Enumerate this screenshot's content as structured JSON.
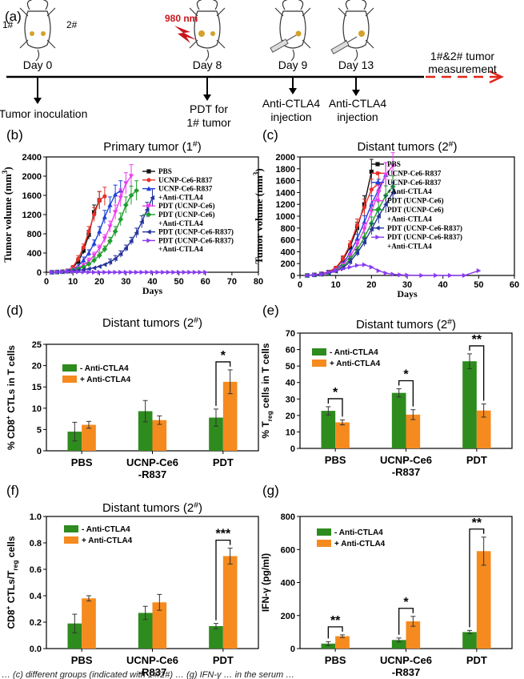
{
  "timeline": {
    "panel": "(a)",
    "laser": "980 nm",
    "mouse_labels": [
      "1#",
      "2#"
    ],
    "days": [
      {
        "day": "Day 0",
        "event_lines": [
          "Tumor inoculation"
        ]
      },
      {
        "day": "Day 8",
        "event_lines": [
          "PDT for",
          "1# tumor"
        ]
      },
      {
        "day": "Day 9",
        "event_lines": [
          "Anti-CTLA4",
          "injection"
        ]
      },
      {
        "day": "Day 13",
        "event_lines": [
          "Anti-CTLA4",
          "injection"
        ]
      }
    ],
    "measurement_lines": [
      "1#&2# tumor",
      "measurement"
    ]
  },
  "colors": {
    "PBS": "#111111",
    "UCNP-Ce6-R837": "#e8312a",
    "UCNP-Ce6-R837 +Anti-CTLA4": "#1f3fd8",
    "PDT (UCNP-Ce6)": "#ee3cf0",
    "PDT (UCNP-Ce6) +Anti-CTLA4": "#1e9e2e",
    "PDT (UCNP-Ce6-R837)": "#27349c",
    "PDT (UCNP-Ce6-R837) +Anti-CTLA4": "#8a3bf0",
    "minus": "#2e8b1e",
    "plus": "#f58a1f",
    "timeline_arrow": "#e0261b"
  },
  "footer_text": "… (c) different groups (indicated with 1#/2#) … (g) IFN-γ … in the serum …",
  "chart_data": [
    {
      "panel": "(b)",
      "type": "line",
      "title": "Primary tumor (1#)",
      "xlabel": "Days",
      "ylabel": "Tumor volume (mm3)",
      "xlim": [
        0,
        80
      ],
      "ylim": [
        0,
        2400
      ],
      "xticks": [
        0,
        10,
        20,
        30,
        40,
        50,
        60,
        70,
        80
      ],
      "yticks": [
        0,
        400,
        800,
        1200,
        1600,
        2000,
        2400
      ],
      "legend_position": "top-right",
      "series": [
        {
          "name": "PBS",
          "lines": [
            "PBS"
          ],
          "x": [
            2,
            4,
            6,
            8,
            10,
            12,
            14,
            16,
            18,
            20
          ],
          "y": [
            0,
            5,
            10,
            30,
            100,
            220,
            450,
            780,
            1250,
            1500
          ]
        },
        {
          "name": "UCNP-Ce6-R837",
          "lines": [
            "UCNP-Ce6-R837"
          ],
          "x": [
            2,
            4,
            6,
            8,
            10,
            12,
            14,
            16,
            18,
            20,
            22
          ],
          "y": [
            0,
            5,
            12,
            30,
            110,
            280,
            520,
            850,
            1200,
            1500,
            1580
          ]
        },
        {
          "name": "UCNP-Ce6-R837 +Anti-CTLA4",
          "lines": [
            "UCNP-Ce6-R837",
            "+Anti-CTLA4"
          ],
          "x": [
            2,
            4,
            6,
            8,
            10,
            12,
            14,
            16,
            18,
            20,
            22,
            24,
            26,
            28
          ],
          "y": [
            0,
            5,
            10,
            25,
            60,
            130,
            250,
            400,
            600,
            850,
            1150,
            1400,
            1620,
            1700
          ]
        },
        {
          "name": "PDT (UCNP-Ce6)",
          "lines": [
            "PDT (UCNP-Ce6)"
          ],
          "x": [
            2,
            4,
            6,
            8,
            10,
            12,
            14,
            16,
            18,
            20,
            22,
            24,
            26,
            28,
            30,
            32
          ],
          "y": [
            0,
            5,
            10,
            25,
            50,
            90,
            150,
            230,
            350,
            500,
            700,
            950,
            1250,
            1550,
            1850,
            2000
          ]
        },
        {
          "name": "PDT (UCNP-Ce6) +Anti-CTLA4",
          "lines": [
            "PDT (UCNP-Ce6)",
            "+Anti-CTLA4"
          ],
          "x": [
            2,
            4,
            6,
            8,
            10,
            12,
            14,
            16,
            18,
            20,
            22,
            24,
            26,
            28,
            30,
            32,
            34
          ],
          "y": [
            0,
            5,
            10,
            20,
            40,
            70,
            110,
            170,
            250,
            350,
            480,
            650,
            850,
            1100,
            1400,
            1600,
            1700
          ]
        },
        {
          "name": "PDT (UCNP-Ce6-R837)",
          "lines": [
            "PDT (UCNP-Ce6-R837)"
          ],
          "x": [
            2,
            4,
            6,
            8,
            10,
            12,
            14,
            16,
            18,
            20,
            22,
            24,
            26,
            28,
            30,
            32,
            34,
            36,
            38,
            40
          ],
          "y": [
            0,
            5,
            10,
            20,
            30,
            40,
            55,
            70,
            90,
            120,
            160,
            210,
            280,
            380,
            500,
            650,
            820,
            1050,
            1300,
            1550
          ]
        },
        {
          "name": "PDT (UCNP-Ce6-R837) +Anti-CTLA4",
          "lines": [
            "PDT (UCNP-Ce6-R837)",
            "+Anti-CTLA4"
          ],
          "x": [
            2,
            4,
            6,
            8,
            10,
            12,
            14,
            16,
            18,
            20,
            22,
            24,
            26,
            28,
            30,
            32,
            34,
            36,
            38,
            40,
            42,
            44,
            46,
            48,
            50,
            52,
            54,
            56,
            58,
            60
          ],
          "y": [
            0,
            5,
            10,
            15,
            12,
            8,
            5,
            2,
            0,
            0,
            0,
            0,
            0,
            0,
            0,
            0,
            0,
            0,
            0,
            0,
            0,
            0,
            0,
            0,
            0,
            0,
            0,
            0,
            0,
            0
          ]
        }
      ]
    },
    {
      "panel": "(c)",
      "type": "line",
      "title": "Distant tumors (2#)",
      "xlabel": "Days",
      "ylabel": "Tumor volume (mm3)",
      "xlim": [
        0,
        60
      ],
      "ylim": [
        0,
        2000
      ],
      "xticks": [
        0,
        10,
        20,
        30,
        40,
        50,
        60
      ],
      "yticks": [
        0,
        200,
        400,
        600,
        800,
        1000,
        1200,
        1400,
        1600,
        1800,
        2000
      ],
      "legend_position": "top-right",
      "series": [
        {
          "name": "PBS",
          "lines": [
            "PBS"
          ],
          "x": [
            2,
            4,
            6,
            8,
            10,
            12,
            14,
            16,
            18,
            20
          ],
          "y": [
            0,
            10,
            30,
            60,
            120,
            260,
            480,
            800,
            1200,
            1750
          ]
        },
        {
          "name": "UCNP-Ce6-R837",
          "lines": [
            "UCNP-Ce6-R837"
          ],
          "x": [
            2,
            4,
            6,
            8,
            10,
            12,
            14,
            16,
            18,
            20,
            22
          ],
          "y": [
            0,
            10,
            30,
            60,
            130,
            280,
            520,
            850,
            1150,
            1450,
            1550
          ]
        },
        {
          "name": "UCNP-Ce6-R837 +Anti-CTLA4",
          "lines": [
            "UCNP-Ce6-R837",
            "+Anti-CTLA4"
          ],
          "x": [
            2,
            4,
            6,
            8,
            10,
            12,
            14,
            16,
            18,
            20,
            22,
            24
          ],
          "y": [
            0,
            10,
            25,
            50,
            100,
            200,
            380,
            620,
            900,
            1200,
            1450,
            1700
          ]
        },
        {
          "name": "PDT (UCNP-Ce6)",
          "lines": [
            "PDT (UCNP-Ce6)"
          ],
          "x": [
            2,
            4,
            6,
            8,
            10,
            12,
            14,
            16,
            18,
            20,
            22,
            24,
            26
          ],
          "y": [
            0,
            10,
            25,
            50,
            90,
            180,
            320,
            520,
            780,
            1080,
            1400,
            1700,
            1850
          ]
        },
        {
          "name": "PDT (UCNP-Ce6) +Anti-CTLA4",
          "lines": [
            "PDT (UCNP-Ce6)",
            "+Anti-CTLA4"
          ],
          "x": [
            2,
            4,
            6,
            8,
            10,
            12,
            14,
            16,
            18,
            20,
            22,
            24,
            26
          ],
          "y": [
            0,
            10,
            20,
            40,
            80,
            150,
            270,
            430,
            640,
            880,
            1120,
            1350,
            1500
          ]
        },
        {
          "name": "PDT (UCNP-Ce6-R837)",
          "lines": [
            "PDT (UCNP-Ce6-R837)"
          ],
          "x": [
            2,
            4,
            6,
            8,
            10,
            12,
            14,
            16,
            18,
            20,
            22,
            24,
            26
          ],
          "y": [
            0,
            10,
            20,
            40,
            70,
            130,
            230,
            380,
            560,
            780,
            1000,
            1200,
            1400
          ]
        },
        {
          "name": "PDT (UCNP-Ce6-R837) +Anti-CTLA4",
          "lines": [
            "PDT (UCNP-Ce6-R837)",
            "+Anti-CTLA4"
          ],
          "x": [
            2,
            4,
            6,
            8,
            10,
            12,
            14,
            16,
            18,
            20,
            22,
            24,
            26,
            28,
            30,
            34,
            38,
            42,
            46,
            50
          ],
          "y": [
            0,
            10,
            20,
            50,
            80,
            110,
            140,
            170,
            180,
            140,
            80,
            40,
            20,
            10,
            5,
            0,
            0,
            0,
            0,
            80
          ]
        }
      ]
    },
    {
      "panel": "(d)",
      "type": "bar",
      "title": "Distant tumors (2#)",
      "ylabel": "% CD8+ CTLs in T cells",
      "categories": [
        [
          "PBS"
        ],
        [
          "UCNP-Ce6",
          "-R837"
        ],
        [
          "PDT"
        ]
      ],
      "ylim": [
        0,
        25
      ],
      "yticks": [
        0,
        5,
        10,
        15,
        20,
        25
      ],
      "legend_position": "top-left",
      "series": [
        {
          "name": "- Anti-CTLA4",
          "values": [
            4.5,
            9.3,
            7.8
          ],
          "errors": [
            2.2,
            2.5,
            2.0
          ]
        },
        {
          "name": "+ Anti-CTLA4",
          "values": [
            6.1,
            7.2,
            16.2
          ],
          "errors": [
            0.8,
            1.0,
            2.8
          ]
        }
      ],
      "significance": [
        {
          "category": 2,
          "label": "*"
        }
      ]
    },
    {
      "panel": "(e)",
      "type": "bar",
      "title": "Distant tumors (2#)",
      "ylabel": "% Treg cells in T cells",
      "categories": [
        [
          "PBS"
        ],
        [
          "UCNP-Ce6",
          "-R837"
        ],
        [
          "PDT"
        ]
      ],
      "ylim": [
        0,
        70
      ],
      "yticks": [
        0,
        10,
        20,
        30,
        40,
        50,
        60,
        70
      ],
      "legend_position": "top-left",
      "series": [
        {
          "name": "- Anti-CTLA4",
          "values": [
            22.8,
            33.7,
            52.9
          ],
          "errors": [
            2.5,
            2.5,
            4.5
          ]
        },
        {
          "name": "+ Anti-CTLA4",
          "values": [
            15.8,
            20.5,
            23.0
          ],
          "errors": [
            1.5,
            3.0,
            4.0
          ]
        }
      ],
      "significance": [
        {
          "category": 0,
          "label": "*"
        },
        {
          "category": 1,
          "label": "*"
        },
        {
          "category": 2,
          "label": "**"
        }
      ]
    },
    {
      "panel": "(f)",
      "type": "bar",
      "title": "Distant tumors (2#)",
      "ylabel": "CD8+ CTLs/Treg cells",
      "categories": [
        [
          "PBS"
        ],
        [
          "UCNP-Ce6",
          "-R837"
        ],
        [
          "PDT"
        ]
      ],
      "ylim": [
        0,
        1.0
      ],
      "yticks": [
        0.0,
        0.2,
        0.4,
        0.6,
        0.8,
        1.0
      ],
      "legend_position": "top-left",
      "series": [
        {
          "name": "- Anti-CTLA4",
          "values": [
            0.19,
            0.27,
            0.17
          ],
          "errors": [
            0.07,
            0.05,
            0.02
          ]
        },
        {
          "name": "+ Anti-CTLA4",
          "values": [
            0.38,
            0.35,
            0.7
          ],
          "errors": [
            0.02,
            0.06,
            0.06
          ]
        }
      ],
      "significance": [
        {
          "category": 2,
          "label": "***"
        }
      ]
    },
    {
      "panel": "(g)",
      "type": "bar",
      "title": "",
      "ylabel": "IFN-γ (pg/ml)",
      "categories": [
        [
          "PBS"
        ],
        [
          "UCNP-Ce6",
          "-R837"
        ],
        [
          "PDT"
        ]
      ],
      "ylim": [
        0,
        800
      ],
      "yticks": [
        0,
        200,
        400,
        600,
        800
      ],
      "legend_position": "top-left",
      "series": [
        {
          "name": "- Anti-CTLA4",
          "values": [
            30,
            52,
            100
          ],
          "errors": [
            12,
            12,
            10
          ]
        },
        {
          "name": "+ Anti-CTLA4",
          "values": [
            75,
            165,
            590
          ],
          "errors": [
            8,
            30,
            85
          ]
        }
      ],
      "significance": [
        {
          "category": 0,
          "label": "**"
        },
        {
          "category": 1,
          "label": "*"
        },
        {
          "category": 2,
          "label": "**"
        }
      ]
    }
  ]
}
